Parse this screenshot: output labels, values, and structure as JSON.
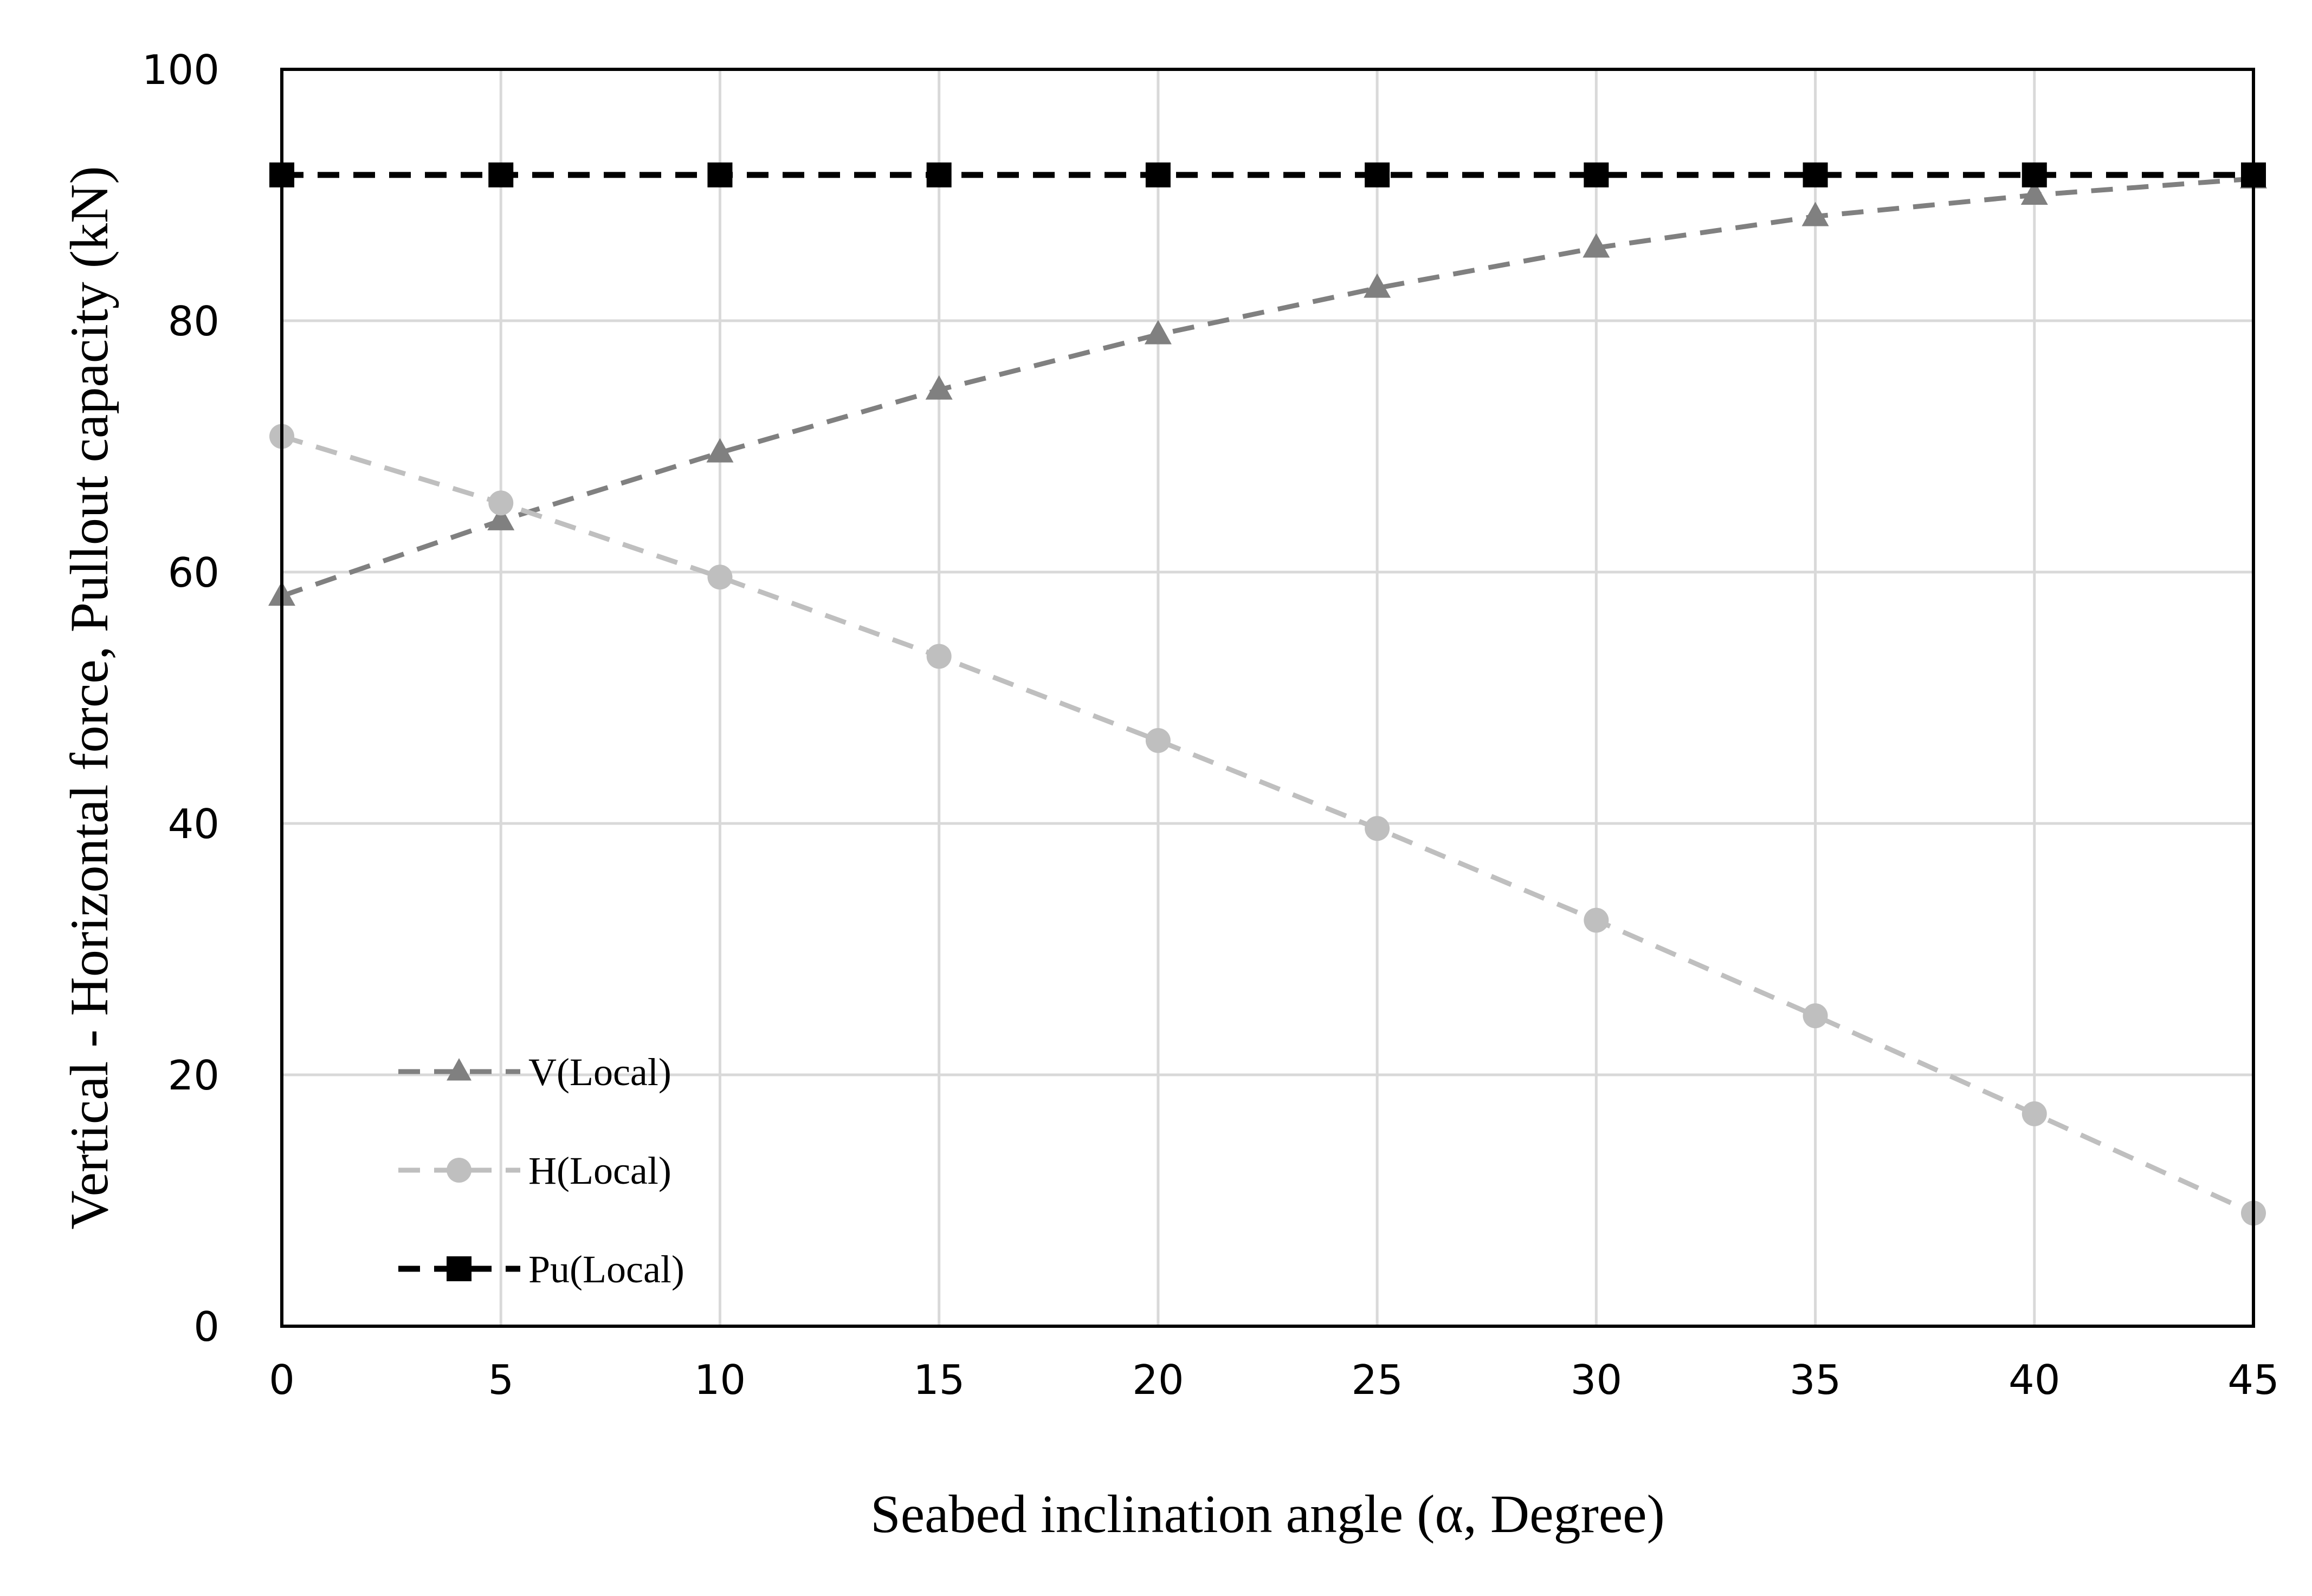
{
  "chart_data": {
    "type": "line",
    "title": "",
    "xlabel": "Seabed inclination angle (α, Degree)",
    "ylabel": "Vertical - Horizontal force, Pullout capacity (kN)",
    "xlim": [
      0,
      45
    ],
    "ylim": [
      0,
      100
    ],
    "x_ticks": [
      0,
      5,
      10,
      15,
      20,
      25,
      30,
      35,
      40,
      45
    ],
    "y_ticks": [
      0,
      20,
      40,
      60,
      80,
      100
    ],
    "grid": true,
    "legend_position": "bottom-left",
    "x": [
      0,
      5,
      10,
      15,
      20,
      25,
      30,
      35,
      40,
      45
    ],
    "series": [
      {
        "name": "V(Local)",
        "marker": "triangle",
        "color": "#808080",
        "values": [
          58.1,
          64.1,
          69.5,
          74.5,
          78.9,
          82.6,
          85.8,
          88.3,
          90.0,
          91.3
        ]
      },
      {
        "name": "H(Local)",
        "marker": "circle",
        "color": "#bfbfbf",
        "values": [
          70.8,
          65.5,
          59.6,
          53.3,
          46.6,
          39.6,
          32.3,
          24.7,
          16.9,
          9.0
        ]
      },
      {
        "name": "Pu(Local)",
        "marker": "square",
        "color": "#000000",
        "values": [
          91.6,
          91.6,
          91.6,
          91.6,
          91.6,
          91.6,
          91.6,
          91.6,
          91.6,
          91.6
        ]
      }
    ]
  }
}
